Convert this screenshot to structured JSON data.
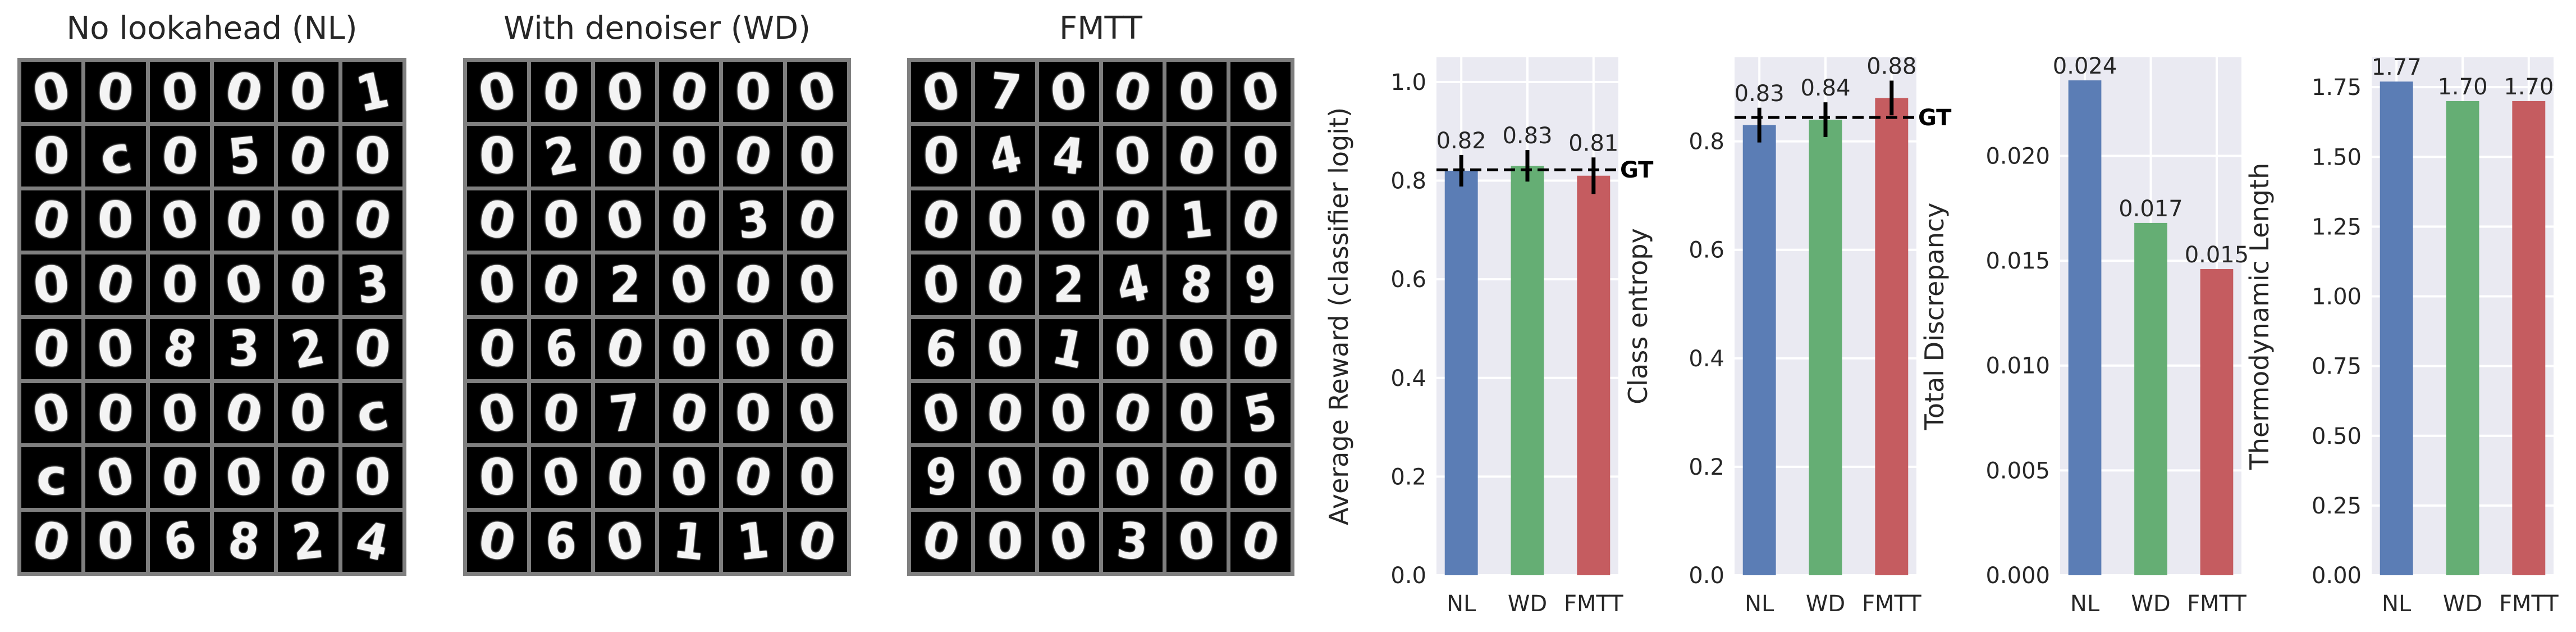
{
  "image_panels": [
    {
      "title": "No lookahead (NL)"
    },
    {
      "title": "With denoiser (WD)"
    },
    {
      "title": "FMTT"
    }
  ],
  "colors": {
    "NL": "#5b7db5",
    "WD": "#65ae74",
    "FMTT": "#c55c60",
    "axes_bg": "#eaeaf2",
    "grid": "#ffffff"
  },
  "chart_data": [
    {
      "type": "bar",
      "categories": [
        "NL",
        "WD",
        "FMTT"
      ],
      "values": [
        0.82,
        0.83,
        0.81
      ],
      "value_labels": [
        "0.82",
        "0.83",
        "0.81"
      ],
      "error": [
        0.032,
        0.032,
        0.037
      ],
      "reference_line": {
        "label": "GT",
        "value": 0.822
      },
      "xlabel": "",
      "ylabel": "Average Reward (classifier logit)",
      "ylim": [
        0,
        1.05
      ],
      "yticks": [
        "0.0",
        "0.2",
        "0.4",
        "0.6",
        "0.8",
        "1.0"
      ],
      "grid": true
    },
    {
      "type": "bar",
      "categories": [
        "NL",
        "WD",
        "FMTT"
      ],
      "values": [
        0.83,
        0.84,
        0.88
      ],
      "value_labels": [
        "0.83",
        "0.84",
        "0.88"
      ],
      "error": [
        0.032,
        0.032,
        0.032
      ],
      "reference_line": {
        "label": "GT",
        "value": 0.844
      },
      "xlabel": "",
      "ylabel": "Class entropy",
      "ylim": [
        0,
        0.955
      ],
      "yticks": [
        "0.0",
        "0.2",
        "0.4",
        "0.6",
        "0.8"
      ],
      "grid": true
    },
    {
      "type": "bar",
      "categories": [
        "NL",
        "WD",
        "FMTT"
      ],
      "values": [
        0.0236,
        0.0168,
        0.0146
      ],
      "value_labels": [
        "0.024",
        "0.017",
        "0.015"
      ],
      "xlabel": "",
      "ylabel": "Total Discrepancy",
      "ylim": [
        0,
        0.0247
      ],
      "yticks": [
        "0.000",
        "0.005",
        "0.010",
        "0.015",
        "0.020"
      ],
      "grid": true
    },
    {
      "type": "bar",
      "categories": [
        "NL",
        "WD",
        "FMTT"
      ],
      "values": [
        1.77,
        1.7,
        1.7
      ],
      "value_labels": [
        "1.77",
        "1.70",
        "1.70"
      ],
      "xlabel": "",
      "ylabel": "Thermodynamic Length",
      "ylim": [
        0,
        1.857
      ],
      "yticks": [
        "0.00",
        "0.25",
        "0.50",
        "0.75",
        "1.00",
        "1.25",
        "1.50",
        "1.75"
      ],
      "grid": true
    }
  ]
}
